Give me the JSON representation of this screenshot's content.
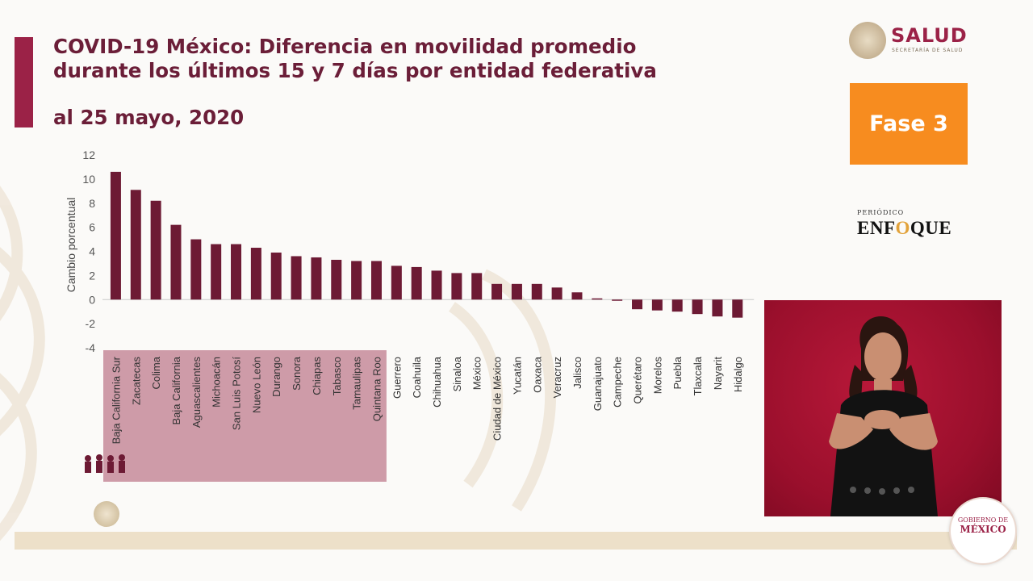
{
  "header": {
    "title_line1": "COVID-19 México: Diferencia en movilidad promedio",
    "title_line2": "durante los últimos 15 y 7 días por entidad federativa",
    "date": "al 25 mayo, 2020"
  },
  "logo": {
    "name": "SALUD",
    "sub": "SECRETARÍA DE SALUD"
  },
  "badge": {
    "label": "Fase 3"
  },
  "watermark": {
    "top": "PERIÓDICO",
    "name_pre": "ENF",
    "name_o": "O",
    "name_post": "QUE"
  },
  "footer_badge": {
    "line1": "GOBIERNO DE",
    "line2": "MÉXICO"
  },
  "colors": {
    "bar": "#6d1a34",
    "highlight": "#c68a9a",
    "title": "#6b1e38",
    "accent": "#9b2247",
    "fase": "#f78c1f"
  },
  "chart_data": {
    "type": "bar",
    "ylabel": "Cambio porcentual",
    "ylim": [
      -4,
      12
    ],
    "yticks": [
      12,
      10,
      8,
      6,
      4,
      2,
      0,
      -2,
      -4
    ],
    "highlight_first_n": 14,
    "categories": [
      "Baja California Sur",
      "Zacatecas",
      "Colima",
      "Baja California",
      "Aguascalientes",
      "Michoacán",
      "San Luis Potosí",
      "Nuevo León",
      "Durango",
      "Sonora",
      "Chiapas",
      "Tabasco",
      "Tamaulipas",
      "Quintana Roo",
      "Guerrero",
      "Coahuila",
      "Chihuahua",
      "Sinaloa",
      "México",
      "Ciudad de México",
      "Yucatán",
      "Oaxaca",
      "Veracruz",
      "Jalisco",
      "Guanajuato",
      "Campeche",
      "Querétaro",
      "Morelos",
      "Puebla",
      "Tlaxcala",
      "Nayarit",
      "Hidalgo"
    ],
    "values": [
      10.6,
      9.1,
      8.2,
      6.2,
      5.0,
      4.6,
      4.6,
      4.3,
      3.9,
      3.6,
      3.5,
      3.3,
      3.2,
      3.2,
      2.8,
      2.7,
      2.4,
      2.2,
      2.2,
      1.3,
      1.3,
      1.3,
      1.0,
      0.6,
      0.1,
      -0.1,
      -0.8,
      -0.9,
      -1.0,
      -1.2,
      -1.4,
      -1.5
    ]
  }
}
